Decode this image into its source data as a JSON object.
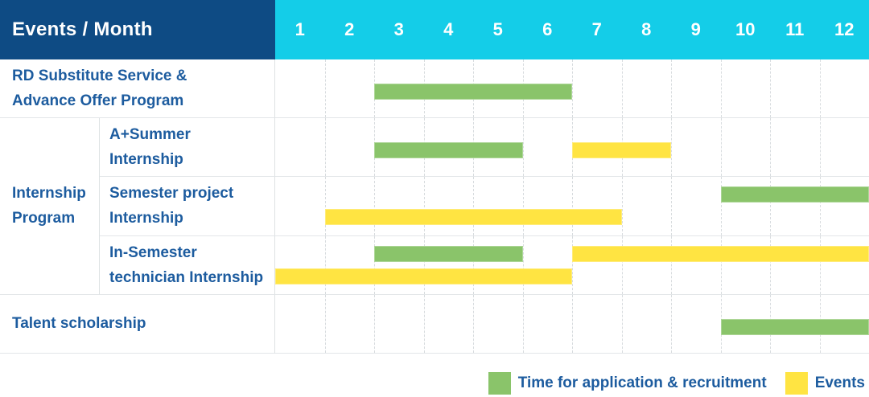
{
  "chart_data": {
    "type": "bar",
    "subtype": "gantt",
    "title": "Events / Month",
    "x_axis": {
      "label": "Month",
      "ticks": [
        "1",
        "2",
        "3",
        "4",
        "5",
        "6",
        "7",
        "8",
        "9",
        "10",
        "11",
        "12"
      ],
      "range": [
        1,
        12
      ]
    },
    "grid": true,
    "legend_position": "bottom-right",
    "legend": [
      {
        "key": "application",
        "label": "Time for application & recruitment",
        "color": "#8AC46A"
      },
      {
        "key": "events",
        "label": "Events",
        "color": "#FFE442"
      }
    ],
    "colors": {
      "header_bg": "#0E4B84",
      "months_header_bg": "#14CDE8",
      "header_text": "#FFFFFF",
      "label_text": "#1D5C9F",
      "application_green": "#8AC46A",
      "events_yellow": "#FFE442"
    },
    "groups": [
      {
        "label": "Internship Program",
        "label_lines": [
          "Internship",
          "Program"
        ],
        "rows": [
          2,
          3,
          4
        ]
      }
    ],
    "rows": [
      {
        "label": "RD Substitute Service & Advance Offer Program",
        "label_lines": [
          "RD Substitute Service &",
          "Advance Offer Program"
        ],
        "group": "",
        "bars": [
          {
            "series": "application",
            "start_month": 3,
            "end_month": 6,
            "lane": "middle"
          }
        ]
      },
      {
        "label": "A+Summer Internship",
        "label_lines": [
          "A+Summer",
          "Internship"
        ],
        "group": "Internship Program",
        "bars": [
          {
            "series": "application",
            "start_month": 3,
            "end_month": 5,
            "lane": "middle"
          },
          {
            "series": "events",
            "start_month": 7,
            "end_month": 8,
            "lane": "middle"
          }
        ]
      },
      {
        "label": "Semester project Internship",
        "label_lines": [
          "Semester project",
          "Internship"
        ],
        "group": "Internship Program",
        "bars": [
          {
            "series": "application",
            "start_month": 10,
            "end_month": 12,
            "lane": "upper"
          },
          {
            "series": "events",
            "start_month": 2,
            "end_month": 7,
            "lane": "lower"
          }
        ]
      },
      {
        "label": "In-Semester technician Internship",
        "label_lines": [
          "In-Semester",
          "technician Internship"
        ],
        "group": "Internship Program",
        "bars": [
          {
            "series": "application",
            "start_month": 3,
            "end_month": 5,
            "lane": "upper"
          },
          {
            "series": "events",
            "start_month": 7,
            "end_month": 12,
            "lane": "upper"
          },
          {
            "series": "events",
            "start_month": 1,
            "end_month": 6,
            "lane": "lower"
          }
        ]
      },
      {
        "label": "Talent scholarship",
        "label_lines": [
          "Talent scholarship"
        ],
        "group": "",
        "bars": [
          {
            "series": "application",
            "start_month": 10,
            "end_month": 12,
            "lane": "middle"
          }
        ]
      }
    ]
  }
}
